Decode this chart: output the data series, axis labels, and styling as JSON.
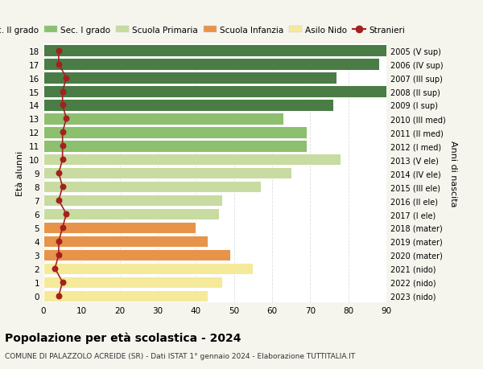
{
  "ages": [
    0,
    1,
    2,
    3,
    4,
    5,
    6,
    7,
    8,
    9,
    10,
    11,
    12,
    13,
    14,
    15,
    16,
    17,
    18
  ],
  "bar_values": [
    43,
    47,
    55,
    49,
    43,
    40,
    46,
    47,
    57,
    65,
    78,
    69,
    69,
    63,
    76,
    92,
    77,
    88,
    91
  ],
  "stranieri": [
    4,
    5,
    3,
    4,
    4,
    5,
    6,
    4,
    5,
    4,
    5,
    5,
    5,
    6,
    5,
    5,
    6,
    4,
    4
  ],
  "right_labels": [
    "2023 (nido)",
    "2022 (nido)",
    "2021 (nido)",
    "2020 (mater)",
    "2019 (mater)",
    "2018 (mater)",
    "2017 (I ele)",
    "2016 (II ele)",
    "2015 (III ele)",
    "2014 (IV ele)",
    "2013 (V ele)",
    "2012 (I med)",
    "2011 (II med)",
    "2010 (III med)",
    "2009 (I sup)",
    "2008 (II sup)",
    "2007 (III sup)",
    "2006 (IV sup)",
    "2005 (V sup)"
  ],
  "bar_colors": [
    "#f5e99a",
    "#f5e99a",
    "#f5e99a",
    "#e8934a",
    "#e8934a",
    "#e8934a",
    "#c8dba0",
    "#c8dba0",
    "#c8dba0",
    "#c8dba0",
    "#c8dba0",
    "#8cbf6e",
    "#8cbf6e",
    "#8cbf6e",
    "#4a7c45",
    "#4a7c45",
    "#4a7c45",
    "#4a7c45",
    "#4a7c45"
  ],
  "stranieri_color": "#a52020",
  "plot_bg_color": "#ffffff",
  "fig_bg_color": "#f5f5ee",
  "title": "Popolazione per età scolastica - 2024",
  "subtitle": "COMUNE DI PALAZZOLO ACREIDE (SR) - Dati ISTAT 1° gennaio 2024 - Elaborazione TUTTITALIA.IT",
  "ylabel": "Età alunni",
  "right_ylabel": "Anni di nascita",
  "legend_items": [
    {
      "label": "Sec. II grado",
      "color": "#4a7c45"
    },
    {
      "label": "Sec. I grado",
      "color": "#8cbf6e"
    },
    {
      "label": "Scuola Primaria",
      "color": "#c8dba0"
    },
    {
      "label": "Scuola Infanzia",
      "color": "#e8934a"
    },
    {
      "label": "Asilo Nido",
      "color": "#f5e99a"
    },
    {
      "label": "Stranieri",
      "color": "#a52020"
    }
  ],
  "xlim": [
    0,
    90
  ],
  "xticks": [
    0,
    10,
    20,
    30,
    40,
    50,
    60,
    70,
    80,
    90
  ]
}
